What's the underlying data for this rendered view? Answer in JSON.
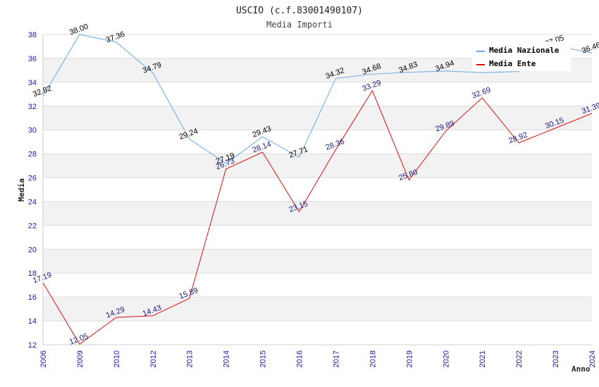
{
  "chart_data": {
    "type": "line",
    "title": "USCIO (c.f.83001490107)",
    "subtitle": "Media Importi",
    "xlabel": "Anno",
    "ylabel": "Media",
    "categories": [
      "2006",
      "2009",
      "2010",
      "2012",
      "2013",
      "2014",
      "2015",
      "2016",
      "2017",
      "2018",
      "2019",
      "2020",
      "2021",
      "2022",
      "2023",
      "2024"
    ],
    "ylim": [
      12,
      38
    ],
    "yticks": [
      12,
      14,
      16,
      18,
      20,
      22,
      24,
      26,
      28,
      30,
      32,
      34,
      36,
      38
    ],
    "grid": true,
    "legend_position": "top-right",
    "series": [
      {
        "name": "Media Nazionale",
        "color": "#6aaae6",
        "label_color": "#000000",
        "values": [
          32.82,
          38.0,
          37.36,
          34.79,
          29.24,
          27.19,
          29.43,
          27.71,
          34.32,
          34.68,
          34.83,
          34.94,
          null,
          null,
          37.05,
          36.46
        ]
      },
      {
        "name": "Media Ente",
        "color": "#e01010",
        "label_color": "#1a1a80",
        "values": [
          17.19,
          12.05,
          14.29,
          14.43,
          15.89,
          26.73,
          28.14,
          23.15,
          28.36,
          33.29,
          25.8,
          29.89,
          32.69,
          28.92,
          30.15,
          31.39
        ]
      }
    ],
    "nazionale_line_values": [
      32.82,
      38.0,
      37.36,
      34.79,
      29.24,
      27.19,
      29.43,
      27.71,
      34.32,
      34.68,
      34.83,
      34.94,
      34.8,
      34.9,
      37.05,
      36.46
    ]
  }
}
